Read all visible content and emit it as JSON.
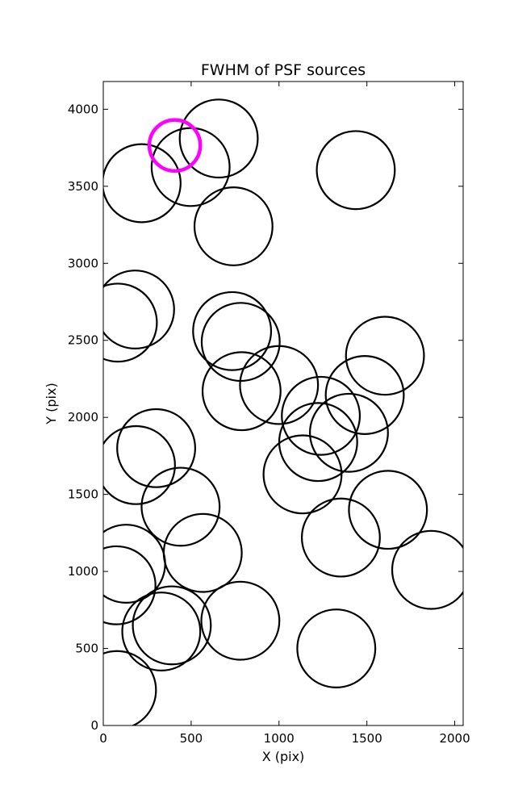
{
  "chart_data": {
    "type": "scatter",
    "title": "FWHM of PSF sources",
    "xlabel": "X (pix)",
    "ylabel": "Y (pix)",
    "xlim": [
      0,
      2048
    ],
    "ylim": [
      0,
      4180
    ],
    "x_ticks": [
      0,
      500,
      1000,
      1500,
      2000
    ],
    "y_ticks": [
      0,
      500,
      1000,
      1500,
      2000,
      2500,
      3000,
      3500,
      4000
    ],
    "grid": false,
    "legend": "none",
    "series": [
      {
        "color": "#000000",
        "marker": "circle",
        "points": [
          {
            "x": 657,
            "y": 3810,
            "r": 222
          },
          {
            "x": 497,
            "y": 3625,
            "r": 222
          },
          {
            "x": 218,
            "y": 3520,
            "r": 222
          },
          {
            "x": 741,
            "y": 3240,
            "r": 222
          },
          {
            "x": 1437,
            "y": 3605,
            "r": 222
          },
          {
            "x": 181,
            "y": 2700,
            "r": 222
          },
          {
            "x": 83,
            "y": 2615,
            "r": 222
          },
          {
            "x": 733,
            "y": 2560,
            "r": 222
          },
          {
            "x": 782,
            "y": 2490,
            "r": 222
          },
          {
            "x": 1603,
            "y": 2400,
            "r": 222
          },
          {
            "x": 1000,
            "y": 2210,
            "r": 222
          },
          {
            "x": 1488,
            "y": 2145,
            "r": 222
          },
          {
            "x": 787,
            "y": 2170,
            "r": 222
          },
          {
            "x": 1238,
            "y": 2010,
            "r": 222
          },
          {
            "x": 1398,
            "y": 1900,
            "r": 222
          },
          {
            "x": 1223,
            "y": 1840,
            "r": 222
          },
          {
            "x": 301,
            "y": 1800,
            "r": 222
          },
          {
            "x": 186,
            "y": 1690,
            "r": 222
          },
          {
            "x": 1134,
            "y": 1630,
            "r": 222
          },
          {
            "x": 1620,
            "y": 1400,
            "r": 222
          },
          {
            "x": 440,
            "y": 1420,
            "r": 222
          },
          {
            "x": 1352,
            "y": 1220,
            "r": 222
          },
          {
            "x": 566,
            "y": 1120,
            "r": 222
          },
          {
            "x": 130,
            "y": 1050,
            "r": 222
          },
          {
            "x": 1866,
            "y": 1010,
            "r": 222
          },
          {
            "x": 75,
            "y": 910,
            "r": 222
          },
          {
            "x": 390,
            "y": 650,
            "r": 222
          },
          {
            "x": 780,
            "y": 680,
            "r": 222
          },
          {
            "x": 330,
            "y": 610,
            "r": 222
          },
          {
            "x": 1326,
            "y": 500,
            "r": 222
          },
          {
            "x": 78,
            "y": 230,
            "r": 222
          }
        ]
      },
      {
        "color": "#ff00ff",
        "marker": "circle",
        "points": [
          {
            "x": 407,
            "y": 3765,
            "r": 145
          }
        ]
      }
    ]
  }
}
